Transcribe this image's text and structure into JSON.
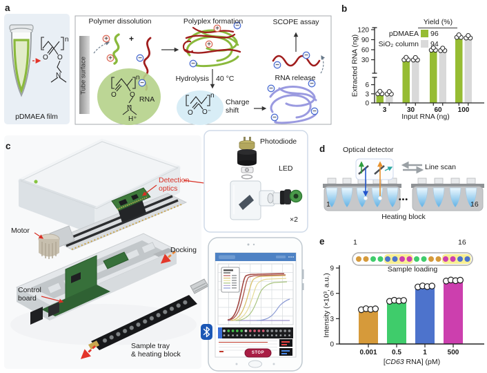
{
  "colors": {
    "green_polymer": "#8ab93c",
    "red_rna": "#a01d1d",
    "purple_polymer": "#9a9ae0",
    "bar_green": "#96bc33",
    "bar_gray": "#d9d9d9",
    "accent_red": "#d93025",
    "docking_orange": "#f08a3a",
    "bluetooth_blue": "#1b57b5",
    "yellow_highlight": "#f8ef93"
  },
  "panels": {
    "a": {
      "letter": "a",
      "film_label": "pDMAEA film",
      "titles": {
        "step1": "Polymer dissolution",
        "step2": "Polyplex formation",
        "step3": "SCOPE assay"
      },
      "labels": {
        "tube_surface": "Tube surface",
        "rna": "RNA",
        "plus": "+",
        "hydrolysis": "Hydrolysis",
        "temperature": "40 °C",
        "charge": "Charge",
        "shift": "shift",
        "rna_release": "RNA release"
      },
      "atoms": {
        "o": "O",
        "n": "N",
        "repeat": "n",
        "h_plus": "H⁺",
        "o_minus": "O⁻"
      }
    },
    "b": {
      "letter": "b",
      "legend": {
        "title": "Yield (%)",
        "rows": [
          {
            "label": "pDMAEA",
            "value": "96"
          },
          {
            "label": "SiO₂ column",
            "value": "94"
          }
        ]
      },
      "ylabel": "Extracted RNA (ng)",
      "xlabel": "Input RNA (ng)"
    },
    "c": {
      "letter": "c",
      "labels": {
        "motor": "Motor",
        "detection_optics_1": "Detection",
        "detection_optics_2": "optics",
        "docking": "Docking",
        "control_board_1": "Control",
        "control_board_2": "board",
        "sample_tray_1": "Sample tray",
        "sample_tray_2": "& heating block",
        "photodiode": "Photodiode",
        "led": "LED",
        "times2": "×2",
        "stop": "STOP"
      }
    },
    "d": {
      "letter": "d",
      "labels": {
        "optical_detector": "Optical detector",
        "line_scan": "Line scan",
        "heating_block": "Heating block",
        "well_first": "1",
        "well_last": "16",
        "ellipsis": "•••"
      }
    },
    "e": {
      "letter": "e",
      "labels": {
        "well_first": "1",
        "well_last": "16",
        "sample_loading": "Sample loading",
        "xlabel_pre": "[",
        "xlabel_italic": "CD63",
        "xlabel_post": " RNA] (pM)"
      },
      "ylabel": "Intensity (×10³, a.u.)",
      "loading_strip": {
        "dot_colors": [
          "#d69a3a",
          "#d69a3a",
          "#3fcc6b",
          "#3fcc6b",
          "#4d73cc",
          "#4d73cc",
          "#cc3fae",
          "#cc3fae",
          "#3fcc6b",
          "#3fcc6b",
          "#d69a3a",
          "#d69a3a",
          "#cc3fae",
          "#cc3fae",
          "#4d73cc",
          "#4d73cc"
        ],
        "highlight_ranges": [
          [
            4,
            7
          ],
          [
            12,
            15
          ]
        ]
      }
    }
  },
  "chart_data": [
    {
      "id": "extracted_rna",
      "type": "bar",
      "categories": [
        "3",
        "30",
        "60",
        "100"
      ],
      "series": [
        {
          "name": "pDMAEA",
          "color": "#96bc33",
          "values": [
            2.9,
            28.8,
            57.6,
            96
          ]
        },
        {
          "name": "SiO₂ column",
          "color": "#d9d9d9",
          "values": [
            2.8,
            28.2,
            56.4,
            94
          ]
        }
      ],
      "xlabel": "Input RNA (ng)",
      "ylabel": "Extracted RNA (ng)",
      "axis_break": {
        "lower_ticks": [
          0,
          3,
          6
        ],
        "upper_ticks": [
          30,
          60,
          90,
          120
        ]
      },
      "legend_title": "Yield (%)",
      "legend_values": {
        "pDMAEA": 96,
        "SiO2 column": 94
      },
      "replicate_points_per_bar": 3
    },
    {
      "id": "cd63_intensity",
      "type": "bar",
      "categories": [
        "0.001",
        "0.5",
        "1",
        "500"
      ],
      "values": [
        4.1,
        5.1,
        6.8,
        7.5
      ],
      "bar_colors": [
        "#d69a3a",
        "#3fcc6b",
        "#4d73cc",
        "#cc3fae"
      ],
      "xlabel": "[CD63 RNA] (pM)",
      "ylabel": "Intensity (×10³, a.u.)",
      "ylim": [
        0,
        9
      ],
      "yticks": [
        0,
        3,
        6,
        9
      ],
      "replicate_points_per_bar": 4
    }
  ]
}
